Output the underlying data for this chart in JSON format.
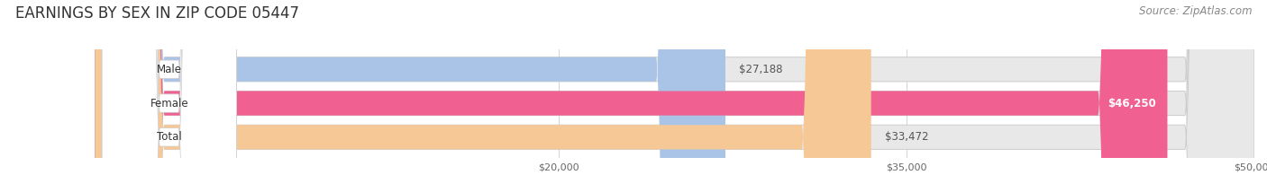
{
  "title": "EARNINGS BY SEX IN ZIP CODE 05447",
  "source": "Source: ZipAtlas.com",
  "categories": [
    "Male",
    "Female",
    "Total"
  ],
  "values": [
    27188,
    46250,
    33472
  ],
  "value_labels": [
    "$27,188",
    "$46,250",
    "$33,472"
  ],
  "bar_colors": [
    "#aac4e8",
    "#f06090",
    "#f5c896"
  ],
  "bar_bg_color": "#e8e8e8",
  "xmin": 0,
  "xmax": 50000,
  "xticks": [
    20000,
    35000,
    50000
  ],
  "xtick_labels": [
    "$20,000",
    "$35,000",
    "$50,000"
  ],
  "fig_bg_color": "#ffffff",
  "title_fontsize": 12,
  "source_fontsize": 8.5,
  "label_fontsize": 8.5,
  "value_fontsize": 8.5,
  "tick_fontsize": 8
}
